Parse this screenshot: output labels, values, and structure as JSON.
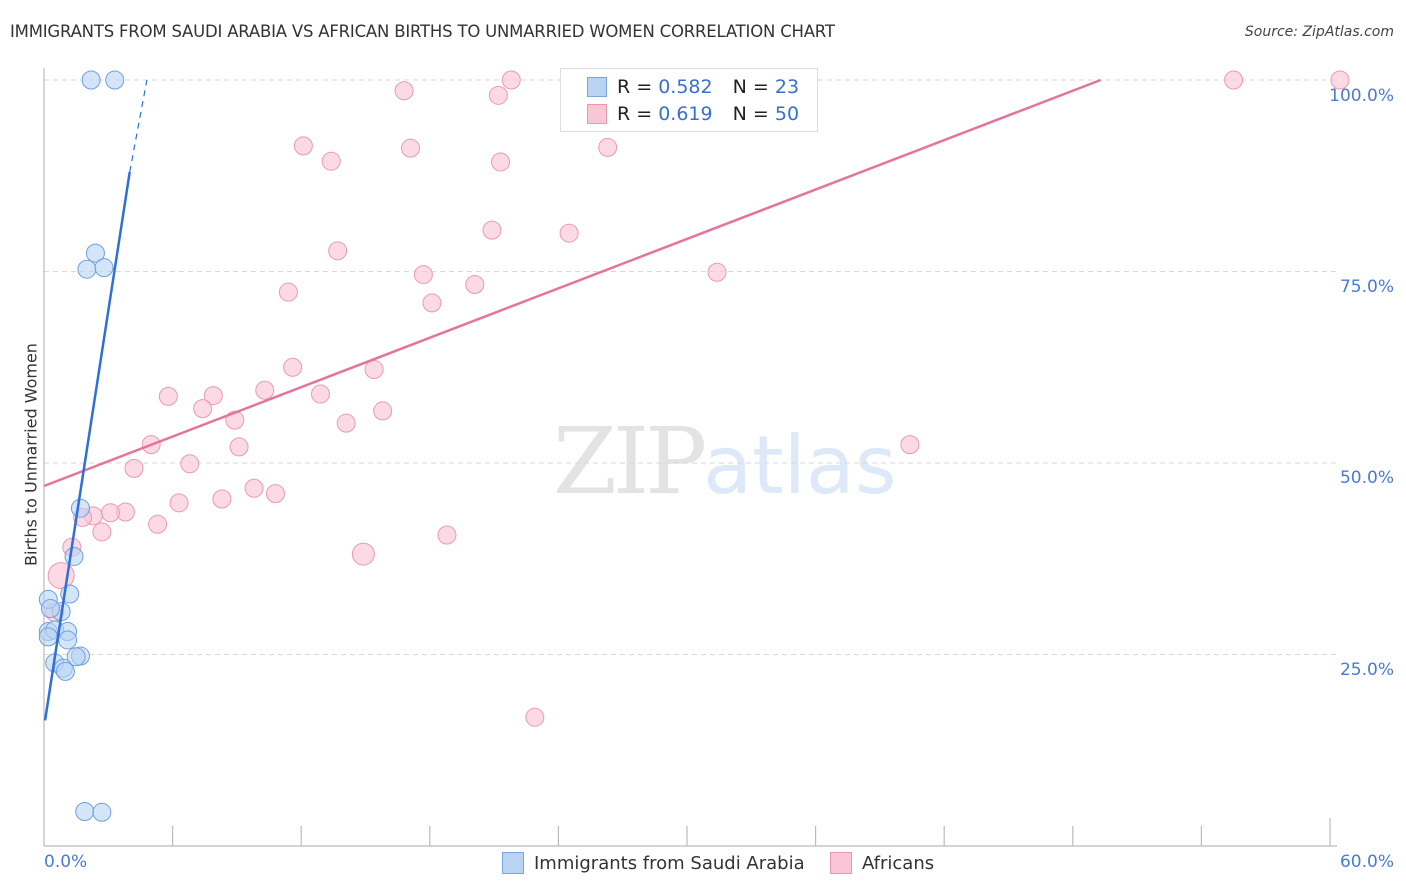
{
  "header": {
    "title": "IMMIGRANTS FROM SAUDI ARABIA VS AFRICAN BIRTHS TO UNMARRIED WOMEN CORRELATION CHART",
    "source": "Source: ZipAtlas.com"
  },
  "axes": {
    "y_title": "Births to Unmarried Women",
    "y_ticks": [
      "100.0%",
      "75.0%",
      "50.0%",
      "25.0%"
    ],
    "x_ticks": [
      "0.0%",
      "60.0%"
    ]
  },
  "legend": {
    "series1": {
      "r_label": "R =",
      "r_value": "0.582",
      "n_label": "N =",
      "n_value": "23"
    },
    "series2": {
      "r_label": "R =",
      "r_value": "0.619",
      "n_label": "N =",
      "n_value": "50"
    }
  },
  "bottom_legend": {
    "series1": "Immigrants from Saudi Arabia",
    "series2": "Africans"
  },
  "watermark": {
    "zip": "ZIP",
    "atlas": "atlas"
  },
  "colors": {
    "blue_fill": "#b9d3f3",
    "blue_stroke": "#6f9fe0",
    "blue_line": "#2f6fd6",
    "pink_fill": "#f9c6d6",
    "pink_stroke": "#e99ab4",
    "pink_line": "#e5739b",
    "tick_text": "#4a7ad4"
  },
  "chart_data": {
    "type": "scatter",
    "title": "IMMIGRANTS FROM SAUDI ARABIA VS AFRICAN BIRTHS TO UNMARRIED WOMEN CORRELATION CHART",
    "xlabel": "",
    "ylabel": "Births to Unmarried Women",
    "xlim": [
      0,
      60
    ],
    "ylim": [
      0,
      100
    ],
    "x_ticks": [
      "0.0%",
      "60.0%"
    ],
    "y_ticks": [
      "25.0%",
      "50.0%",
      "75.0%",
      "100.0%"
    ],
    "grid": true,
    "legend_position": "top-center",
    "series": [
      {
        "name": "Immigrants from Saudi Arabia",
        "R": 0.582,
        "N": 23,
        "trend": {
          "x0": 0.05,
          "y0": 16.4,
          "x1": 4.0,
          "y1": 88.0,
          "dashed_to": {
            "x": 4.8,
            "y": 100
          }
        },
        "points": [
          {
            "x": 2.2,
            "y": 100
          },
          {
            "x": 3.3,
            "y": 100
          },
          {
            "x": 2.4,
            "y": 77.4
          },
          {
            "x": 2.0,
            "y": 75.3
          },
          {
            "x": 2.8,
            "y": 75.5
          },
          {
            "x": 1.7,
            "y": 44.1
          },
          {
            "x": 1.4,
            "y": 37.8
          },
          {
            "x": 1.2,
            "y": 32.9
          },
          {
            "x": 0.2,
            "y": 32.2
          },
          {
            "x": 0.8,
            "y": 30.6
          },
          {
            "x": 0.2,
            "y": 28.0
          },
          {
            "x": 0.5,
            "y": 28.2
          },
          {
            "x": 1.1,
            "y": 28.0
          },
          {
            "x": 1.1,
            "y": 26.9
          },
          {
            "x": 0.2,
            "y": 27.3
          },
          {
            "x": 0.5,
            "y": 23.9
          },
          {
            "x": 1.7,
            "y": 24.8
          },
          {
            "x": 1.5,
            "y": 24.7
          },
          {
            "x": 0.9,
            "y": 23.2
          },
          {
            "x": 1.0,
            "y": 22.8
          },
          {
            "x": 1.9,
            "y": 4.5
          },
          {
            "x": 2.7,
            "y": 4.4
          },
          {
            "x": 0.3,
            "y": 31.0
          }
        ]
      },
      {
        "name": "Africans",
        "R": 0.619,
        "N": 50,
        "trend": {
          "x0": 0.0,
          "y0": 47.0,
          "x1": 49.3,
          "y1": 100
        },
        "points": [
          {
            "x": 21.8,
            "y": 100
          },
          {
            "x": 35.3,
            "y": 100
          },
          {
            "x": 55.5,
            "y": 100
          },
          {
            "x": 64.3,
            "y": 100
          },
          {
            "x": 16.8,
            "y": 98.6
          },
          {
            "x": 21.2,
            "y": 98.0
          },
          {
            "x": 12.1,
            "y": 91.4
          },
          {
            "x": 13.4,
            "y": 89.4
          },
          {
            "x": 17.1,
            "y": 91.1
          },
          {
            "x": 21.3,
            "y": 89.3
          },
          {
            "x": 26.3,
            "y": 91.2
          },
          {
            "x": 20.9,
            "y": 80.4
          },
          {
            "x": 24.5,
            "y": 80.0
          },
          {
            "x": 13.7,
            "y": 77.7
          },
          {
            "x": 17.7,
            "y": 74.6
          },
          {
            "x": 31.4,
            "y": 74.9
          },
          {
            "x": 11.4,
            "y": 72.3
          },
          {
            "x": 20.1,
            "y": 73.3
          },
          {
            "x": 18.1,
            "y": 70.9
          },
          {
            "x": 11.6,
            "y": 62.5
          },
          {
            "x": 15.4,
            "y": 62.2
          },
          {
            "x": 5.8,
            "y": 58.7
          },
          {
            "x": 7.9,
            "y": 58.8
          },
          {
            "x": 10.3,
            "y": 59.5
          },
          {
            "x": 12.9,
            "y": 59.0
          },
          {
            "x": 7.4,
            "y": 57.1
          },
          {
            "x": 8.9,
            "y": 55.6
          },
          {
            "x": 14.1,
            "y": 55.2
          },
          {
            "x": 15.8,
            "y": 56.8
          },
          {
            "x": 5.0,
            "y": 52.4
          },
          {
            "x": 9.1,
            "y": 52.1
          },
          {
            "x": 40.4,
            "y": 52.4
          },
          {
            "x": 4.2,
            "y": 49.3
          },
          {
            "x": 6.8,
            "y": 49.9
          },
          {
            "x": 9.8,
            "y": 46.7
          },
          {
            "x": 10.8,
            "y": 46.0
          },
          {
            "x": 8.3,
            "y": 45.3
          },
          {
            "x": 6.3,
            "y": 44.8
          },
          {
            "x": 3.8,
            "y": 43.6
          },
          {
            "x": 3.1,
            "y": 43.5
          },
          {
            "x": 2.3,
            "y": 43.1
          },
          {
            "x": 1.8,
            "y": 42.9
          },
          {
            "x": 5.3,
            "y": 42.0
          },
          {
            "x": 2.7,
            "y": 41.0
          },
          {
            "x": 18.8,
            "y": 40.6
          },
          {
            "x": 1.3,
            "y": 39.0
          },
          {
            "x": 14.9,
            "y": 38.1
          },
          {
            "x": 0.8,
            "y": 35.3
          },
          {
            "x": 0.5,
            "y": 30.5
          },
          {
            "x": 22.9,
            "y": 16.8
          }
        ]
      }
    ]
  }
}
